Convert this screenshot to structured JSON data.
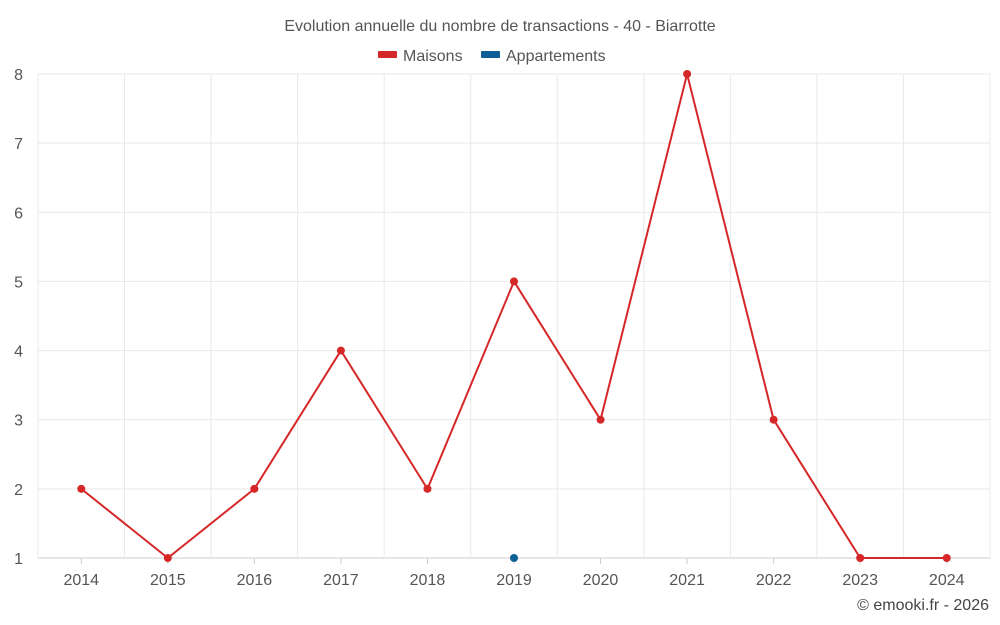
{
  "chart_data": {
    "type": "line",
    "title": "Evolution annuelle du nombre de transactions - 40 - Biarrotte",
    "categories": [
      "2014",
      "2015",
      "2016",
      "2017",
      "2018",
      "2019",
      "2020",
      "2021",
      "2022",
      "2023",
      "2024"
    ],
    "series": [
      {
        "name": "Maisons",
        "color": "#d62728",
        "values": [
          2,
          1,
          2,
          4,
          2,
          5,
          3,
          8,
          3,
          1,
          1
        ]
      },
      {
        "name": "Appartements",
        "color": "#0e5f96",
        "values": [
          null,
          null,
          null,
          null,
          null,
          1,
          null,
          null,
          null,
          null,
          null
        ]
      }
    ],
    "ylim": [
      1,
      8
    ],
    "yticks": [
      "1",
      "2",
      "3",
      "4",
      "5",
      "6",
      "7",
      "8"
    ],
    "grid": true,
    "legend": "top-center"
  },
  "credit": "© emooki.fr - 2026"
}
